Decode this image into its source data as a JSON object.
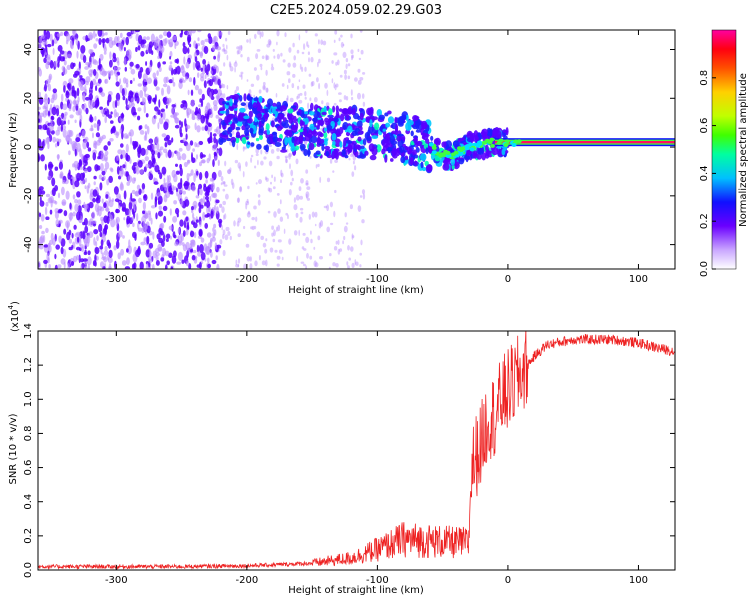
{
  "figure": {
    "title": "C2E5.2024.059.02.29.G03"
  },
  "colors": {
    "spectrum": "#5a00ff",
    "spectrum_light": "#b98cff",
    "snr_line": "#ee2222",
    "colormap": [
      "#ffffff",
      "#c9a6ff",
      "#6a00ff",
      "#1010ff",
      "#00c0ff",
      "#00ffa0",
      "#40ff00",
      "#c0ff00",
      "#ffd000",
      "#ff5000",
      "#ff0010",
      "#ff00a0"
    ]
  },
  "chart_data": [
    {
      "type": "heatmap",
      "title": "C2E5.2024.059.02.29.G03",
      "xlabel": "Height of straight line (km)",
      "ylabel": "Frequency (Hz)",
      "xlim": [
        -360,
        128
      ],
      "ylim": [
        -50,
        48
      ],
      "xticks": [
        -300,
        -200,
        -100,
        0,
        100
      ],
      "yticks": [
        -40,
        -20,
        0,
        20,
        40
      ],
      "ridge": {
        "x": [
          -220,
          -200,
          -180,
          -160,
          -140,
          -120,
          -100,
          -80,
          -60,
          -45,
          -30,
          -10,
          0,
          20,
          60,
          90,
          128
        ],
        "y": [
          12,
          11,
          9,
          7,
          6,
          6,
          5,
          4,
          0,
          -4,
          0,
          2,
          2,
          2,
          2,
          2,
          2
        ]
      },
      "colorbar": {
        "label": "Normalized spectral amplitude",
        "range": [
          0,
          1
        ],
        "ticks": [
          "0.0",
          "0.2",
          "0.4",
          "0.6",
          "0.8"
        ]
      }
    },
    {
      "type": "line",
      "xlabel": "Height of straight line (km)",
      "ylabel": "SNR (10 * v/v)",
      "y_multiplier_label": "(x10",
      "y_multiplier_exp": "4",
      "xlim": [
        -360,
        128
      ],
      "ylim": [
        0,
        1.4
      ],
      "xticks": [
        -300,
        -200,
        -100,
        0,
        100
      ],
      "yticks": [
        "0.0",
        "0.2",
        "0.4",
        "0.6",
        "0.8",
        "1.0",
        "1.2",
        "1.4"
      ],
      "series": [
        {
          "x": [
            -360,
            -300,
            -250,
            -200,
            -180,
            -150,
            -120,
            -100,
            -80,
            -60,
            -40,
            -30,
            -28,
            -20,
            -15,
            -10,
            -5,
            0,
            10,
            20,
            30,
            50,
            80,
            100,
            115,
            128
          ],
          "y": [
            0.02,
            0.02,
            0.02,
            0.025,
            0.03,
            0.04,
            0.07,
            0.12,
            0.18,
            0.17,
            0.16,
            0.16,
            0.6,
            0.75,
            0.9,
            0.9,
            1.0,
            1.05,
            1.15,
            1.25,
            1.32,
            1.35,
            1.35,
            1.33,
            1.3,
            1.28
          ]
        }
      ]
    }
  ]
}
